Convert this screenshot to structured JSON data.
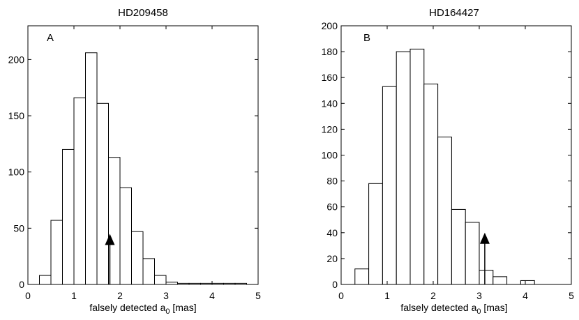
{
  "chart_data": [
    {
      "type": "bar",
      "title": "HD209458",
      "panel_label": "A",
      "xlabel_main": "falsely detected a",
      "xlabel_sub": "0",
      "xlabel_unit": " [mas]",
      "xlim": [
        0,
        5
      ],
      "ylim": [
        0,
        230
      ],
      "xticks": [
        0,
        1,
        2,
        3,
        4,
        5
      ],
      "yticks": [
        0,
        50,
        100,
        150,
        200
      ],
      "bin_edges": [
        0.25,
        0.5,
        0.75,
        1.0,
        1.25,
        1.5,
        1.75,
        2.0,
        2.25,
        2.5,
        2.75,
        3.0,
        3.25,
        3.5,
        3.75,
        4.0,
        4.25,
        4.5,
        4.75
      ],
      "values": [
        8,
        57,
        120,
        166,
        206,
        161,
        113,
        86,
        47,
        23,
        8,
        2,
        1,
        1,
        1,
        1,
        1,
        1
      ],
      "arrow": {
        "x": 1.78,
        "y_tip": 45
      }
    },
    {
      "type": "bar",
      "title": "HD164427",
      "panel_label": "B",
      "xlabel_main": "falsely detected a",
      "xlabel_sub": "0",
      "xlabel_unit": " [mas]",
      "xlim": [
        0,
        5
      ],
      "ylim": [
        0,
        200
      ],
      "xticks": [
        0,
        1,
        2,
        3,
        4,
        5
      ],
      "yticks": [
        0,
        20,
        40,
        60,
        80,
        100,
        120,
        140,
        160,
        180,
        200
      ],
      "bin_edges": [
        0.3,
        0.6,
        0.9,
        1.2,
        1.5,
        1.8,
        2.1,
        2.4,
        2.7,
        3.0,
        3.3,
        3.6,
        3.9,
        4.2
      ],
      "values": [
        12,
        78,
        153,
        180,
        182,
        155,
        114,
        58,
        48,
        11,
        6,
        0,
        3
      ],
      "arrow": {
        "x": 3.12,
        "y_tip": 40
      }
    }
  ]
}
